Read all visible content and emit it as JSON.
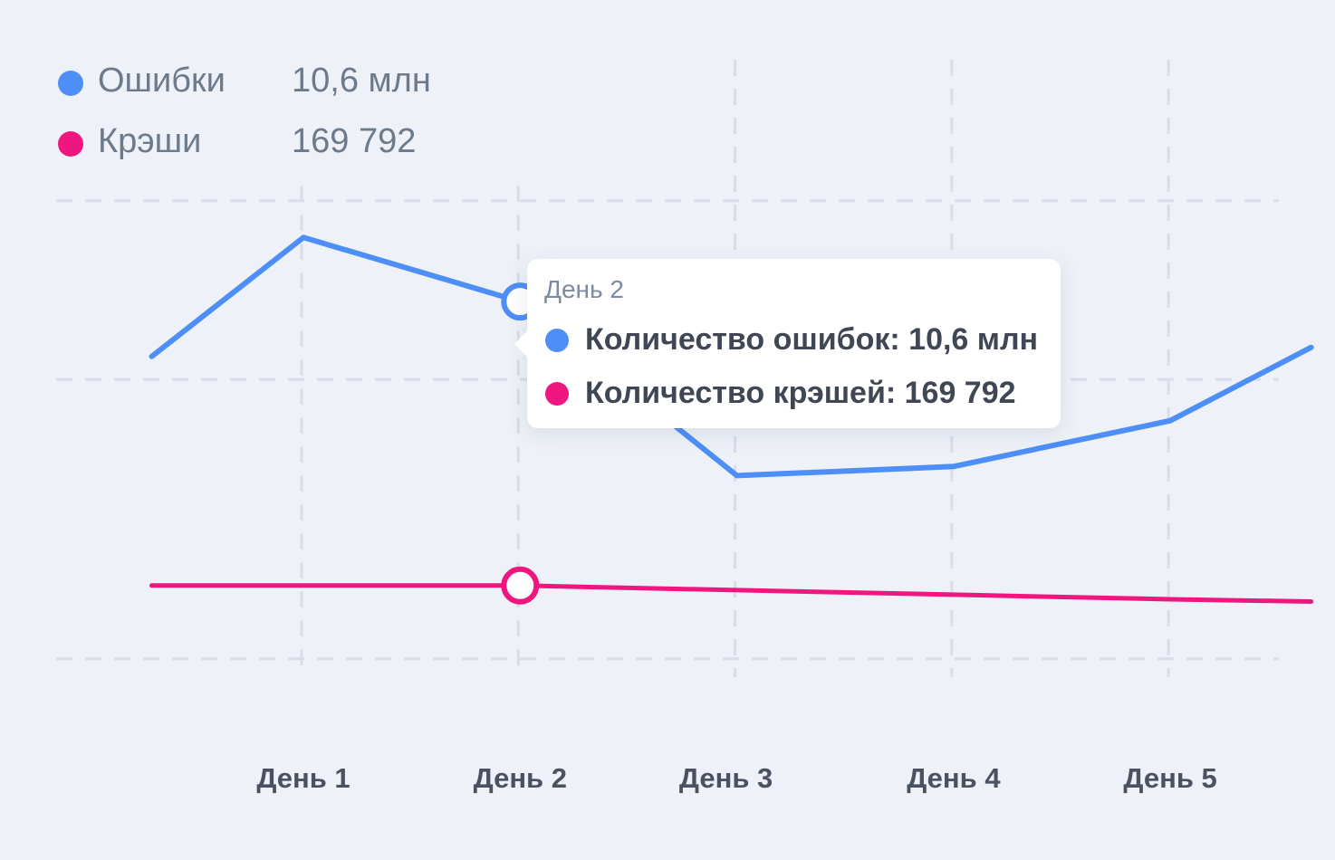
{
  "colors": {
    "background": "#eef1f7",
    "grid": "#d8dde8",
    "errors": "#4d8ef7",
    "crashes": "#f0167f",
    "legend_text": "#6d7a8c",
    "tick_text": "#4a5262"
  },
  "legend": [
    {
      "name": "Ошибки",
      "value": "10,6 млн"
    },
    {
      "name": "Крэши",
      "value": "169 792"
    }
  ],
  "tooltip": {
    "title": "День 2",
    "rows": [
      {
        "text": "Количество ошибок: 10,6 млн"
      },
      {
        "text": "Количество крэшей: 169 792"
      }
    ]
  },
  "chart_data": {
    "type": "line",
    "title": "",
    "xlabel": "",
    "ylabel": "",
    "categories": [
      "День 1",
      "День 2",
      "День 3",
      "День 4",
      "День 5"
    ],
    "x": [
      0.3,
      1,
      2,
      3,
      4,
      5,
      5.65
    ],
    "series": [
      {
        "name": "Ошибки",
        "values": [
          6.6,
          9.2,
          7.8,
          4.0,
          4.2,
          5.2,
          6.8
        ]
      },
      {
        "name": "Крэши",
        "values": [
          1.6,
          1.6,
          1.6,
          1.5,
          1.4,
          1.3,
          1.25
        ]
      }
    ],
    "highlight_index": 2,
    "ylim": [
      -0.4,
      13
    ],
    "grid": true,
    "legend_position": "top-left"
  }
}
